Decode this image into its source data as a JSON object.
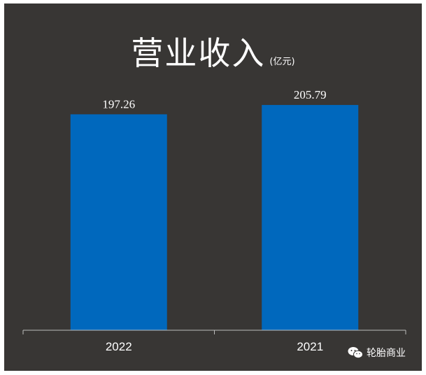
{
  "chart_data": {
    "type": "bar",
    "title": "营业收入",
    "unit": "(亿元)",
    "categories": [
      "2022",
      "2021"
    ],
    "values": [
      197.26,
      205.79
    ],
    "value_labels": [
      "197.26",
      "205.79"
    ],
    "ylim": [
      0,
      225
    ],
    "grid": false,
    "legend": "none",
    "bar_color": "#0068BD",
    "background": "#383634"
  },
  "watermark": {
    "text": "轮胎商业",
    "icon": "wechat-icon"
  }
}
